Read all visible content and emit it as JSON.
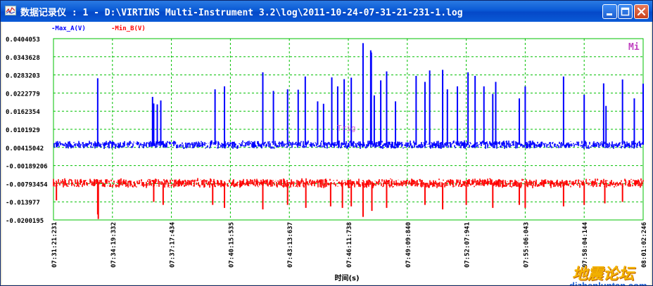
{
  "window": {
    "title": "数据记录仪 : 1 - D:\\VIRTINS Multi-Instrument 3.2\\log\\2011-10-24-07-31-21-231-1.log",
    "icon": "chart-icon",
    "controls": [
      "minimize-icon",
      "maximize-icon",
      "close-icon"
    ]
  },
  "chart_data": {
    "type": "line",
    "title": "",
    "xlabel": "时间(s)",
    "ylabel": "",
    "corner_label": "Mi",
    "trigger_label": "Trig",
    "legend": [
      {
        "name": "-Max_A(V)",
        "color": "#0000ff"
      },
      {
        "name": "-Min_B(V)",
        "color": "#ff0000"
      }
    ],
    "y_ticks": [
      "0.0404053",
      "0.0343628",
      "0.0283203",
      "0.0222779",
      "0.0162354",
      "0.0101929",
      "0.00415042",
      "-0.00189206",
      "-0.00793454",
      "-0.013977",
      "-0.0200195"
    ],
    "ylim": [
      -0.0200195,
      0.0404053
    ],
    "x_ticks": [
      "07:31:21:231",
      "07:34:19:332",
      "07:37:17:434",
      "07:40:15:535",
      "07:43:13:637",
      "07:46:11:738",
      "07:49:09:840",
      "07:52:07:941",
      "07:55:06:043",
      "07:58:04:144",
      "08:01:02:246"
    ],
    "grid": true,
    "grid_color": "#00c000",
    "series": [
      {
        "name": "Max_A(V)",
        "color": "#0000ff",
        "baseline_min": 0.0035,
        "baseline_max": 0.0066,
        "spikes": [
          {
            "t": 0.075,
            "v": 0.0272
          },
          {
            "t": 0.168,
            "v": 0.021
          },
          {
            "t": 0.17,
            "v": 0.0188
          },
          {
            "t": 0.176,
            "v": 0.0185
          },
          {
            "t": 0.182,
            "v": 0.0198
          },
          {
            "t": 0.274,
            "v": 0.0235
          },
          {
            "t": 0.29,
            "v": 0.0245
          },
          {
            "t": 0.355,
            "v": 0.0292
          },
          {
            "t": 0.373,
            "v": 0.023
          },
          {
            "t": 0.397,
            "v": 0.0235
          },
          {
            "t": 0.415,
            "v": 0.0234
          },
          {
            "t": 0.427,
            "v": 0.0278
          },
          {
            "t": 0.448,
            "v": 0.0195
          },
          {
            "t": 0.458,
            "v": 0.0187
          },
          {
            "t": 0.472,
            "v": 0.0275
          },
          {
            "t": 0.482,
            "v": 0.0245
          },
          {
            "t": 0.493,
            "v": 0.0269
          },
          {
            "t": 0.505,
            "v": 0.0274
          },
          {
            "t": 0.525,
            "v": 0.0389
          },
          {
            "t": 0.538,
            "v": 0.0365
          },
          {
            "t": 0.539,
            "v": 0.0358
          },
          {
            "t": 0.544,
            "v": 0.0215
          },
          {
            "t": 0.555,
            "v": 0.0265
          },
          {
            "t": 0.565,
            "v": 0.0295
          },
          {
            "t": 0.58,
            "v": 0.0195
          },
          {
            "t": 0.615,
            "v": 0.028
          },
          {
            "t": 0.63,
            "v": 0.026
          },
          {
            "t": 0.638,
            "v": 0.0298
          },
          {
            "t": 0.66,
            "v": 0.03
          },
          {
            "t": 0.668,
            "v": 0.0235
          },
          {
            "t": 0.685,
            "v": 0.0245
          },
          {
            "t": 0.703,
            "v": 0.0292
          },
          {
            "t": 0.715,
            "v": 0.028
          },
          {
            "t": 0.73,
            "v": 0.0245
          },
          {
            "t": 0.745,
            "v": 0.022
          },
          {
            "t": 0.75,
            "v": 0.026
          },
          {
            "t": 0.79,
            "v": 0.0205
          },
          {
            "t": 0.8,
            "v": 0.0245
          },
          {
            "t": 0.865,
            "v": 0.0278
          },
          {
            "t": 0.9,
            "v": 0.0217
          },
          {
            "t": 0.933,
            "v": 0.0255
          },
          {
            "t": 0.937,
            "v": 0.018
          },
          {
            "t": 0.965,
            "v": 0.0268
          },
          {
            "t": 0.985,
            "v": 0.0205
          },
          {
            "t": 1.0,
            "v": 0.0254
          }
        ]
      },
      {
        "name": "Min_B(V)",
        "color": "#ff0000",
        "baseline_min": -0.0095,
        "baseline_max": -0.006,
        "dips": [
          {
            "t": 0.005,
            "v": -0.0135
          },
          {
            "t": 0.075,
            "v": -0.0182
          },
          {
            "t": 0.076,
            "v": -0.0197
          },
          {
            "t": 0.17,
            "v": -0.014
          },
          {
            "t": 0.186,
            "v": -0.015
          },
          {
            "t": 0.27,
            "v": -0.015
          },
          {
            "t": 0.29,
            "v": -0.016
          },
          {
            "t": 0.355,
            "v": -0.0165
          },
          {
            "t": 0.397,
            "v": -0.015
          },
          {
            "t": 0.428,
            "v": -0.016
          },
          {
            "t": 0.47,
            "v": -0.0155
          },
          {
            "t": 0.49,
            "v": -0.016
          },
          {
            "t": 0.505,
            "v": -0.0155
          },
          {
            "t": 0.525,
            "v": -0.019
          },
          {
            "t": 0.54,
            "v": -0.017
          },
          {
            "t": 0.565,
            "v": -0.016
          },
          {
            "t": 0.63,
            "v": -0.015
          },
          {
            "t": 0.66,
            "v": -0.0165
          },
          {
            "t": 0.7,
            "v": -0.015
          },
          {
            "t": 0.745,
            "v": -0.016
          },
          {
            "t": 0.79,
            "v": -0.015
          },
          {
            "t": 0.8,
            "v": -0.016
          },
          {
            "t": 0.865,
            "v": -0.0155
          },
          {
            "t": 0.9,
            "v": -0.015
          },
          {
            "t": 0.935,
            "v": -0.0145
          },
          {
            "t": 0.965,
            "v": -0.014
          }
        ]
      }
    ]
  },
  "watermark": {
    "text_cn": "地震论坛",
    "url": "dizhenluntan.com"
  }
}
